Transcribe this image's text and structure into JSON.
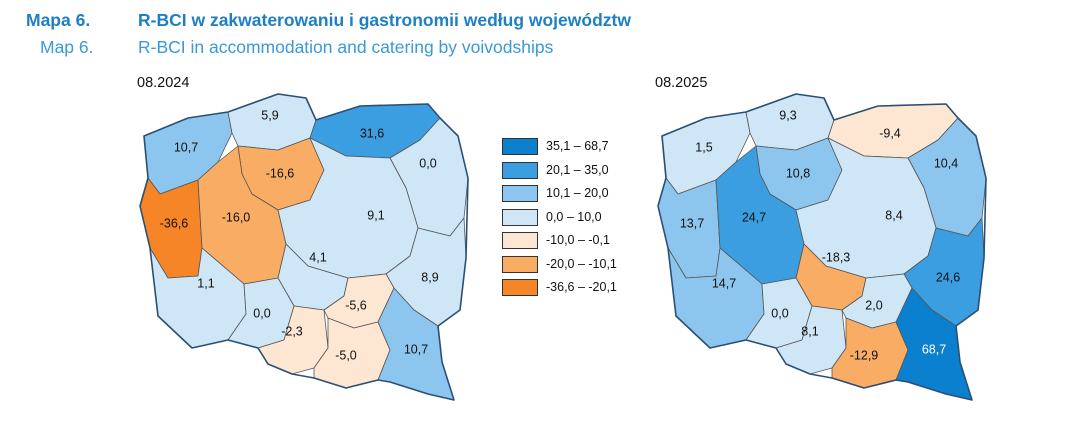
{
  "header": {
    "pl": {
      "num": "Mapa 6.",
      "title": "R-BCI w zakwaterowaniu i gastronomii według województw"
    },
    "en": {
      "num": "Map 6.",
      "title": "R-BCI in accommodation and catering by voivodships"
    }
  },
  "legend": [
    {
      "label": "35,1 –  68,7",
      "color": "#0b80cf"
    },
    {
      "label": "20,1 –  35,0",
      "color": "#3b9ee0"
    },
    {
      "label": "10,1 –  20,0",
      "color": "#8cc6ee"
    },
    {
      "label": "0,0 –  10,0",
      "color": "#cfe6f7"
    },
    {
      "label": "-10,0 –  -0,1",
      "color": "#fde6d2"
    },
    {
      "label": "-20,0 – -10,1",
      "color": "#f9ac64"
    },
    {
      "label": "-36,6 – -20,1",
      "color": "#f58526"
    }
  ],
  "maps": [
    {
      "period": "08.2024",
      "values": {
        "zachodniopomorskie": "10,7",
        "pomorskie": "5,9",
        "warminsko_mazurskie": "31,6",
        "podlaskie": "0,0",
        "kujawsko_pomorskie": "-16,6",
        "lubuskie": "-36,6",
        "wielkopolskie": "-16,0",
        "mazowieckie": "9,1",
        "lodzkie": "4,1",
        "lubelskie": "8,9",
        "dolnoslaskie": "1,1",
        "opolskie": "0,0",
        "slaskie": "-2,3",
        "swietokrzyskie": "-5,6",
        "malopolskie": "-5,0",
        "podkarpackie": "10,7"
      }
    },
    {
      "period": "08.2025",
      "values": {
        "zachodniopomorskie": "1,5",
        "pomorskie": "9,3",
        "warminsko_mazurskie": "-9,4",
        "podlaskie": "10,4",
        "kujawsko_pomorskie": "10,8",
        "lubuskie": "13,7",
        "wielkopolskie": "24,7",
        "mazowieckie": "8,4",
        "lodzkie": "-18,3",
        "lubelskie": "24,6",
        "dolnoslaskie": "14,7",
        "opolskie": "0,0",
        "slaskie": "8,1",
        "swietokrzyskie": "2,0",
        "malopolskie": "-12,9",
        "podkarpackie": "68,7"
      }
    }
  ]
}
